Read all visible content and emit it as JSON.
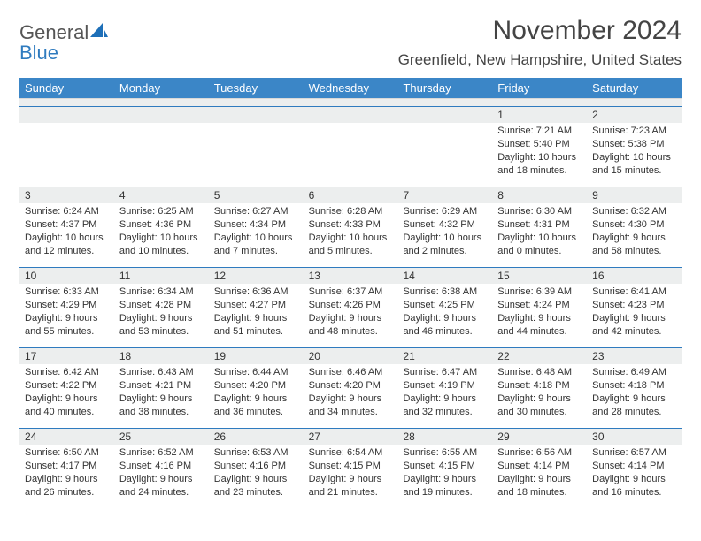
{
  "logo": {
    "text_gray": "General",
    "text_blue": "Blue"
  },
  "title": "November 2024",
  "location": "Greenfield, New Hampshire, United States",
  "colors": {
    "header_bar": "#3b86c7",
    "week_rule": "#2f7bbf",
    "daynum_bg": "#eceeee",
    "text": "#333333",
    "logo_gray": "#555555",
    "logo_blue": "#2f7bbf"
  },
  "dow": [
    "Sunday",
    "Monday",
    "Tuesday",
    "Wednesday",
    "Thursday",
    "Friday",
    "Saturday"
  ],
  "weeks": [
    [
      {
        "n": "",
        "sr": "",
        "ss": "",
        "dl": ""
      },
      {
        "n": "",
        "sr": "",
        "ss": "",
        "dl": ""
      },
      {
        "n": "",
        "sr": "",
        "ss": "",
        "dl": ""
      },
      {
        "n": "",
        "sr": "",
        "ss": "",
        "dl": ""
      },
      {
        "n": "",
        "sr": "",
        "ss": "",
        "dl": ""
      },
      {
        "n": "1",
        "sr": "Sunrise: 7:21 AM",
        "ss": "Sunset: 5:40 PM",
        "dl": "Daylight: 10 hours and 18 minutes."
      },
      {
        "n": "2",
        "sr": "Sunrise: 7:23 AM",
        "ss": "Sunset: 5:38 PM",
        "dl": "Daylight: 10 hours and 15 minutes."
      }
    ],
    [
      {
        "n": "3",
        "sr": "Sunrise: 6:24 AM",
        "ss": "Sunset: 4:37 PM",
        "dl": "Daylight: 10 hours and 12 minutes."
      },
      {
        "n": "4",
        "sr": "Sunrise: 6:25 AM",
        "ss": "Sunset: 4:36 PM",
        "dl": "Daylight: 10 hours and 10 minutes."
      },
      {
        "n": "5",
        "sr": "Sunrise: 6:27 AM",
        "ss": "Sunset: 4:34 PM",
        "dl": "Daylight: 10 hours and 7 minutes."
      },
      {
        "n": "6",
        "sr": "Sunrise: 6:28 AM",
        "ss": "Sunset: 4:33 PM",
        "dl": "Daylight: 10 hours and 5 minutes."
      },
      {
        "n": "7",
        "sr": "Sunrise: 6:29 AM",
        "ss": "Sunset: 4:32 PM",
        "dl": "Daylight: 10 hours and 2 minutes."
      },
      {
        "n": "8",
        "sr": "Sunrise: 6:30 AM",
        "ss": "Sunset: 4:31 PM",
        "dl": "Daylight: 10 hours and 0 minutes."
      },
      {
        "n": "9",
        "sr": "Sunrise: 6:32 AM",
        "ss": "Sunset: 4:30 PM",
        "dl": "Daylight: 9 hours and 58 minutes."
      }
    ],
    [
      {
        "n": "10",
        "sr": "Sunrise: 6:33 AM",
        "ss": "Sunset: 4:29 PM",
        "dl": "Daylight: 9 hours and 55 minutes."
      },
      {
        "n": "11",
        "sr": "Sunrise: 6:34 AM",
        "ss": "Sunset: 4:28 PM",
        "dl": "Daylight: 9 hours and 53 minutes."
      },
      {
        "n": "12",
        "sr": "Sunrise: 6:36 AM",
        "ss": "Sunset: 4:27 PM",
        "dl": "Daylight: 9 hours and 51 minutes."
      },
      {
        "n": "13",
        "sr": "Sunrise: 6:37 AM",
        "ss": "Sunset: 4:26 PM",
        "dl": "Daylight: 9 hours and 48 minutes."
      },
      {
        "n": "14",
        "sr": "Sunrise: 6:38 AM",
        "ss": "Sunset: 4:25 PM",
        "dl": "Daylight: 9 hours and 46 minutes."
      },
      {
        "n": "15",
        "sr": "Sunrise: 6:39 AM",
        "ss": "Sunset: 4:24 PM",
        "dl": "Daylight: 9 hours and 44 minutes."
      },
      {
        "n": "16",
        "sr": "Sunrise: 6:41 AM",
        "ss": "Sunset: 4:23 PM",
        "dl": "Daylight: 9 hours and 42 minutes."
      }
    ],
    [
      {
        "n": "17",
        "sr": "Sunrise: 6:42 AM",
        "ss": "Sunset: 4:22 PM",
        "dl": "Daylight: 9 hours and 40 minutes."
      },
      {
        "n": "18",
        "sr": "Sunrise: 6:43 AM",
        "ss": "Sunset: 4:21 PM",
        "dl": "Daylight: 9 hours and 38 minutes."
      },
      {
        "n": "19",
        "sr": "Sunrise: 6:44 AM",
        "ss": "Sunset: 4:20 PM",
        "dl": "Daylight: 9 hours and 36 minutes."
      },
      {
        "n": "20",
        "sr": "Sunrise: 6:46 AM",
        "ss": "Sunset: 4:20 PM",
        "dl": "Daylight: 9 hours and 34 minutes."
      },
      {
        "n": "21",
        "sr": "Sunrise: 6:47 AM",
        "ss": "Sunset: 4:19 PM",
        "dl": "Daylight: 9 hours and 32 minutes."
      },
      {
        "n": "22",
        "sr": "Sunrise: 6:48 AM",
        "ss": "Sunset: 4:18 PM",
        "dl": "Daylight: 9 hours and 30 minutes."
      },
      {
        "n": "23",
        "sr": "Sunrise: 6:49 AM",
        "ss": "Sunset: 4:18 PM",
        "dl": "Daylight: 9 hours and 28 minutes."
      }
    ],
    [
      {
        "n": "24",
        "sr": "Sunrise: 6:50 AM",
        "ss": "Sunset: 4:17 PM",
        "dl": "Daylight: 9 hours and 26 minutes."
      },
      {
        "n": "25",
        "sr": "Sunrise: 6:52 AM",
        "ss": "Sunset: 4:16 PM",
        "dl": "Daylight: 9 hours and 24 minutes."
      },
      {
        "n": "26",
        "sr": "Sunrise: 6:53 AM",
        "ss": "Sunset: 4:16 PM",
        "dl": "Daylight: 9 hours and 23 minutes."
      },
      {
        "n": "27",
        "sr": "Sunrise: 6:54 AM",
        "ss": "Sunset: 4:15 PM",
        "dl": "Daylight: 9 hours and 21 minutes."
      },
      {
        "n": "28",
        "sr": "Sunrise: 6:55 AM",
        "ss": "Sunset: 4:15 PM",
        "dl": "Daylight: 9 hours and 19 minutes."
      },
      {
        "n": "29",
        "sr": "Sunrise: 6:56 AM",
        "ss": "Sunset: 4:14 PM",
        "dl": "Daylight: 9 hours and 18 minutes."
      },
      {
        "n": "30",
        "sr": "Sunrise: 6:57 AM",
        "ss": "Sunset: 4:14 PM",
        "dl": "Daylight: 9 hours and 16 minutes."
      }
    ]
  ]
}
